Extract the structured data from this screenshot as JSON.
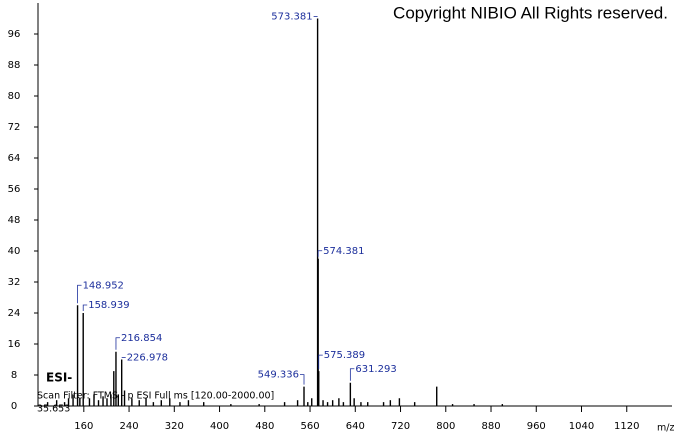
{
  "chart_data": {
    "type": "spectrum",
    "copyright": "Copyright NIBIO All Rights reserved.",
    "ionization": "ESI-",
    "scan_filter": "Scan Filter: FTMS - p ESI Full ms [120.00-2000.00]",
    "retention": "35.653",
    "x_label": "m/z",
    "color": "#000000",
    "label_color": "#1c2f9c",
    "labeled_peaks": {
      "x": [
        148.952,
        158.939,
        216.854,
        226.978,
        549.336,
        573.381,
        574.381,
        575.389,
        631.293
      ],
      "values": [
        26,
        24,
        14,
        12,
        5,
        100,
        38,
        9,
        6
      ]
    },
    "minor_peaks": {
      "x": [
        96,
        112,
        126,
        133,
        141,
        153,
        170,
        178,
        186,
        194,
        201,
        208,
        213,
        221,
        232,
        245,
        258,
        270,
        283,
        297,
        312,
        330,
        345,
        372,
        420,
        470,
        515,
        538,
        556,
        563,
        583,
        591,
        600,
        611,
        619,
        638,
        650,
        662,
        690,
        702,
        718,
        745,
        784,
        812,
        850,
        900
      ],
      "values": [
        1,
        1.5,
        1,
        2,
        3,
        2,
        2,
        3,
        1.5,
        2.5,
        2,
        3,
        9,
        3,
        4,
        2,
        1.5,
        2,
        1,
        1.5,
        2,
        1,
        1.5,
        1,
        0.5,
        0.5,
        1,
        1.5,
        1,
        2,
        1.5,
        1,
        1.5,
        2,
        1,
        2,
        1,
        1,
        1,
        1.5,
        2,
        1,
        5,
        0.5,
        0.5,
        0.5
      ]
    },
    "xlim": [
      79,
      1200
    ],
    "ylim": [
      0,
      104
    ],
    "xticks": [
      160,
      240,
      320,
      400,
      480,
      560,
      640,
      720,
      800,
      880,
      960,
      1040,
      1120
    ],
    "yticks": [
      0,
      8,
      16,
      24,
      32,
      40,
      48,
      56,
      64,
      72,
      80,
      88,
      96
    ]
  }
}
